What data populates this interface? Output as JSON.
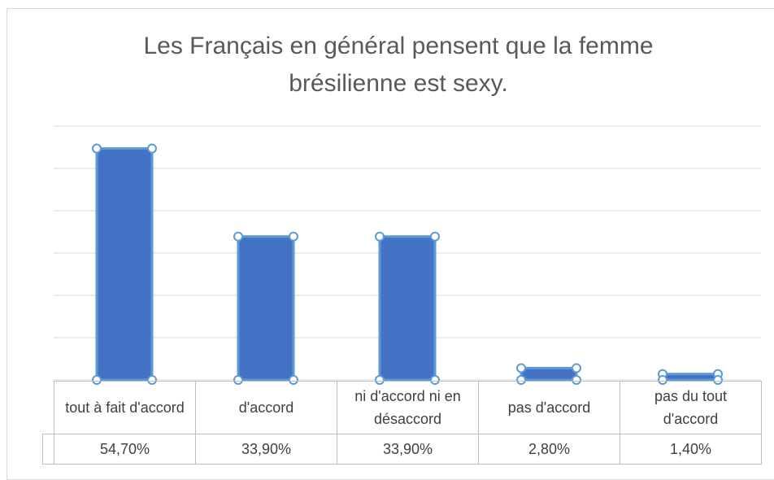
{
  "chart_data": {
    "type": "bar",
    "title": "Les Français en général pensent que la femme brésilienne est sexy.",
    "categories": [
      "tout à fait d'accord",
      "d'accord",
      "ni d'accord ni en désaccord",
      "pas d'accord",
      "pas du tout d'accord"
    ],
    "values": [
      54.7,
      33.9,
      33.9,
      2.8,
      1.4
    ],
    "value_labels": [
      "54,70%",
      "33,90%",
      "33,90%",
      "2,80%",
      "1,40%"
    ],
    "color": "#4472c4",
    "ylim": [
      0,
      60
    ],
    "yticks": [
      0,
      10,
      20,
      30,
      40,
      50,
      60
    ],
    "grid": true
  }
}
